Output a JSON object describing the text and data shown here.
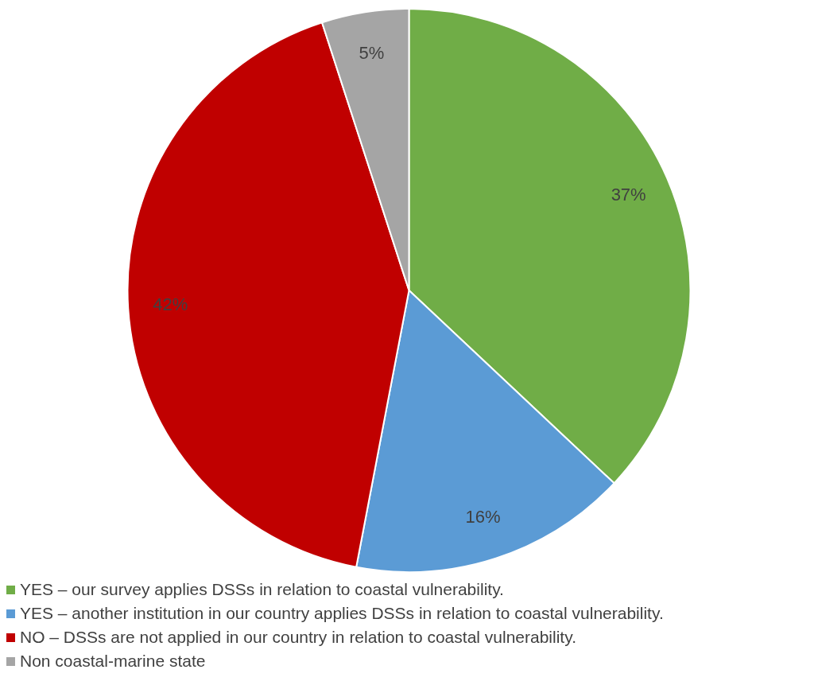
{
  "chart_data": {
    "type": "pie",
    "categories": [
      "YES – our survey applies DSSs in relation to coastal vulnerability.",
      "YES – another institution in our country applies DSSs in relation to coastal vulnerability.",
      "NO – DSSs are not applied in our country in relation to coastal vulnerability.",
      "Non coastal-marine state"
    ],
    "values": [
      37,
      16,
      42,
      5
    ],
    "value_labels": [
      "37%",
      "16%",
      "42%",
      "5%"
    ],
    "colors": [
      "#70ad47",
      "#5b9bd5",
      "#c00000",
      "#a5a5a5"
    ],
    "legend": "bottom"
  }
}
